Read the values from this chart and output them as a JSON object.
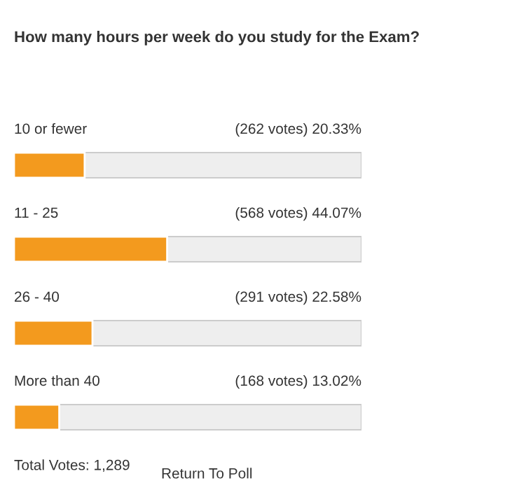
{
  "chart_data": {
    "type": "bar",
    "orientation": "horizontal",
    "title": "How many hours per week do you study for the Exam?",
    "categories": [
      "10 or fewer",
      "11 - 25",
      "26 - 40",
      "More than 40"
    ],
    "values": [
      20.33,
      44.07,
      22.58,
      13.02
    ],
    "value_labels": [
      "(262 votes) 20.33%",
      "(568 votes) 44.07%",
      "(291 votes) 22.58%",
      "(168 votes) 13.02%"
    ],
    "color": "#f39a1e",
    "xlim": [
      0,
      100
    ],
    "annotations": [
      "Total Votes: 1,289",
      "Return To Poll"
    ]
  }
}
